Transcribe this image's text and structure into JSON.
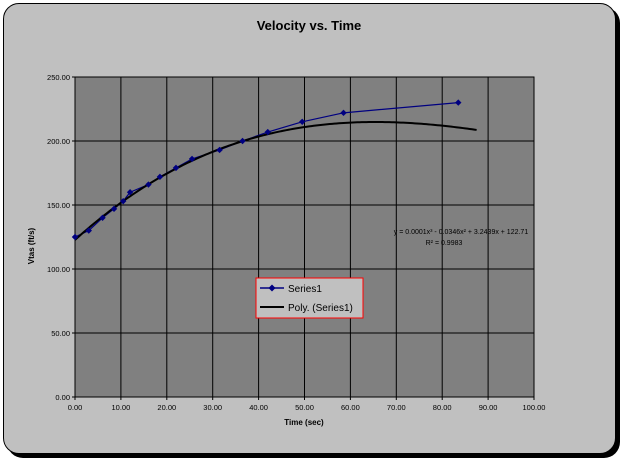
{
  "chart_data": {
    "type": "scatter",
    "title": "Velocity vs. Time",
    "xlabel": "Time (sec)",
    "ylabel": "Vtas (ft/s)",
    "xlim": [
      0,
      100
    ],
    "ylim": [
      0,
      250
    ],
    "x_ticks": [
      "0.00",
      "10.00",
      "20.00",
      "30.00",
      "40.00",
      "50.00",
      "60.00",
      "70.00",
      "80.00",
      "90.00",
      "100.00"
    ],
    "y_ticks": [
      "0.00",
      "50.00",
      "100.00",
      "150.00",
      "200.00",
      "250.00"
    ],
    "grid": true,
    "legend_position": "center",
    "series": [
      {
        "name": "Series1",
        "color": "#000080",
        "marker": "diamond",
        "x": [
          0,
          3,
          6,
          8.5,
          10.5,
          12,
          16,
          18.5,
          22,
          25.5,
          31.5,
          36.5,
          42,
          49.5,
          58.5,
          83.5
        ],
        "y": [
          125,
          130,
          140,
          147,
          153,
          160,
          166,
          172,
          179,
          186,
          193,
          200,
          207,
          215,
          222,
          230
        ]
      }
    ],
    "trendline": {
      "name": "Poly. (Series1)",
      "color": "#000000",
      "coefficients": [
        0.0001,
        -0.0346,
        3.2439,
        122.71
      ],
      "x_range": [
        0,
        87.5
      ],
      "equation": "y = 0.0001x³ - 0.0346x² + 3.2439x + 122.71",
      "r_squared_label": "R² = 0.9983"
    },
    "colors": {
      "chart_background": "#c0c0c0",
      "plot_background": "#808080",
      "legend_border": "#ff0000"
    }
  }
}
